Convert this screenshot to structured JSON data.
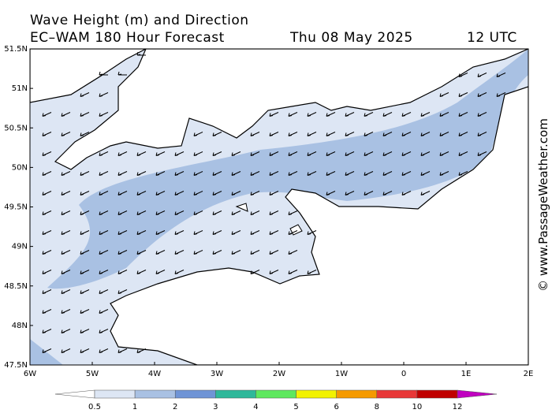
{
  "title": {
    "line1": "Wave Height (m) and Direction",
    "model": "EC–WAM 180 Hour Forecast",
    "date": "Thu 08 May 2025",
    "time": "12 UTC"
  },
  "lat_labels": [
    "51.5N",
    "51N",
    "50.5N",
    "50N",
    "49.5N",
    "49N",
    "48.5N",
    "48N",
    "47.5N"
  ],
  "lon_labels": [
    "6W",
    "5W",
    "4W",
    "3W",
    "2W",
    "1W",
    "0",
    "1E",
    "2E"
  ],
  "colorbar": {
    "labels": [
      "0.5",
      "1",
      "2",
      "3",
      "4",
      "5",
      "6",
      "8",
      "10",
      "12"
    ],
    "colors": [
      "#dde6f4",
      "#a9c1e3",
      "#6f94d6",
      "#2eb89a",
      "#5ee85e",
      "#f2f200",
      "#f59a00",
      "#e83838",
      "#c00000"
    ],
    "under_color": "#ffffff",
    "over_color": "#c000c0"
  },
  "watermark": "© www.PassageWeather.com"
}
